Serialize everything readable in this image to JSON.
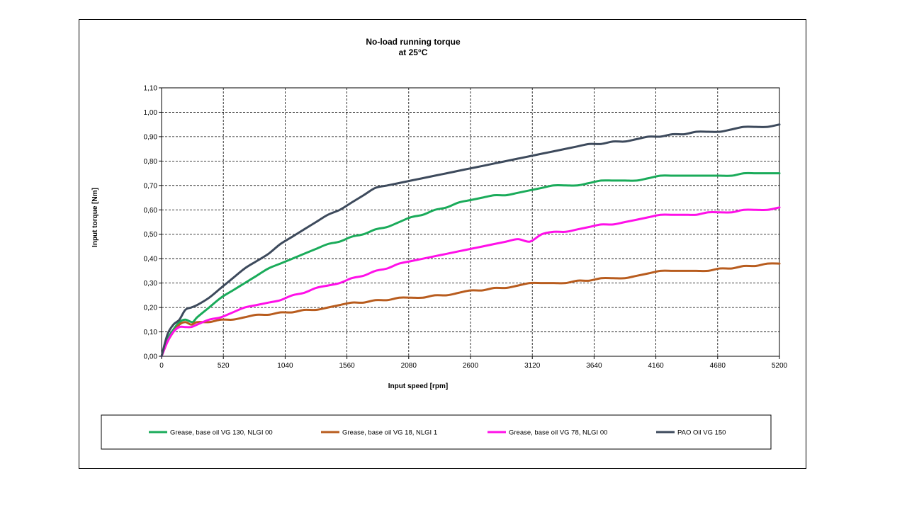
{
  "chart_data": {
    "type": "line",
    "title": "No-load running torque",
    "subtitle": "at 25°C",
    "xlabel": "Input speed [rpm]",
    "ylabel": "Input torque [Nm]",
    "xlim": [
      0,
      5200
    ],
    "ylim": [
      0,
      1.1
    ],
    "x_ticks": [
      "0",
      "520",
      "1040",
      "1560",
      "2080",
      "2600",
      "3120",
      "3640",
      "4160",
      "4680",
      "5200"
    ],
    "y_ticks": [
      "0,00",
      "0,10",
      "0,20",
      "0,30",
      "0,40",
      "0,50",
      "0,60",
      "0,70",
      "0,80",
      "0,90",
      "1,00",
      "1,10"
    ],
    "grid": true,
    "legend_position": "bottom",
    "series": [
      {
        "name": "Grease, base oil VG 130, NLGI 00",
        "color": "#1aab5a",
        "x": [
          0,
          50,
          100,
          150,
          200,
          260,
          300,
          400,
          500,
          600,
          700,
          800,
          900,
          1000,
          1100,
          1200,
          1300,
          1400,
          1500,
          1600,
          1700,
          1800,
          1900,
          2000,
          2100,
          2200,
          2300,
          2400,
          2500,
          2600,
          2700,
          2800,
          2900,
          3000,
          3100,
          3200,
          3300,
          3400,
          3500,
          3600,
          3700,
          3800,
          3900,
          4000,
          4100,
          4200,
          4300,
          4400,
          4500,
          4600,
          4700,
          4800,
          4900,
          5000,
          5100,
          5200
        ],
        "y": [
          0,
          0.07,
          0.11,
          0.14,
          0.15,
          0.14,
          0.16,
          0.2,
          0.24,
          0.27,
          0.3,
          0.33,
          0.36,
          0.38,
          0.4,
          0.42,
          0.44,
          0.46,
          0.47,
          0.49,
          0.5,
          0.52,
          0.53,
          0.55,
          0.57,
          0.58,
          0.6,
          0.61,
          0.63,
          0.64,
          0.65,
          0.66,
          0.66,
          0.67,
          0.68,
          0.69,
          0.7,
          0.7,
          0.7,
          0.71,
          0.72,
          0.72,
          0.72,
          0.72,
          0.73,
          0.74,
          0.74,
          0.74,
          0.74,
          0.74,
          0.74,
          0.74,
          0.75,
          0.75,
          0.75,
          0.75
        ]
      },
      {
        "name": "Grease, base oil VG 18, NLGI 1",
        "color": "#b85c1e",
        "x": [
          0,
          50,
          100,
          150,
          200,
          250,
          300,
          400,
          500,
          600,
          700,
          800,
          900,
          1000,
          1100,
          1200,
          1300,
          1400,
          1500,
          1600,
          1700,
          1800,
          1900,
          2000,
          2100,
          2200,
          2300,
          2400,
          2500,
          2600,
          2700,
          2800,
          2900,
          3000,
          3100,
          3200,
          3300,
          3400,
          3500,
          3600,
          3700,
          3800,
          3900,
          4000,
          4100,
          4200,
          4300,
          4400,
          4500,
          4600,
          4700,
          4800,
          4900,
          5000,
          5100,
          5200
        ],
        "y": [
          0,
          0.06,
          0.1,
          0.13,
          0.14,
          0.13,
          0.14,
          0.14,
          0.15,
          0.15,
          0.16,
          0.17,
          0.17,
          0.18,
          0.18,
          0.19,
          0.19,
          0.2,
          0.21,
          0.22,
          0.22,
          0.23,
          0.23,
          0.24,
          0.24,
          0.24,
          0.25,
          0.25,
          0.26,
          0.27,
          0.27,
          0.28,
          0.28,
          0.29,
          0.3,
          0.3,
          0.3,
          0.3,
          0.31,
          0.31,
          0.32,
          0.32,
          0.32,
          0.33,
          0.34,
          0.35,
          0.35,
          0.35,
          0.35,
          0.35,
          0.36,
          0.36,
          0.37,
          0.37,
          0.38,
          0.38
        ]
      },
      {
        "name": "Grease, base oil VG 78, NLGI 00",
        "color": "#ff10e8",
        "x": [
          0,
          50,
          100,
          150,
          200,
          250,
          300,
          400,
          500,
          600,
          700,
          800,
          900,
          1000,
          1100,
          1200,
          1300,
          1400,
          1500,
          1600,
          1700,
          1800,
          1900,
          2000,
          2100,
          2200,
          2300,
          2400,
          2500,
          2600,
          2700,
          2800,
          2900,
          3000,
          3100,
          3200,
          3300,
          3400,
          3500,
          3600,
          3700,
          3800,
          3900,
          4000,
          4100,
          4200,
          4300,
          4400,
          4500,
          4600,
          4700,
          4800,
          4900,
          5000,
          5100,
          5200
        ],
        "y": [
          0,
          0.06,
          0.1,
          0.12,
          0.12,
          0.12,
          0.13,
          0.15,
          0.16,
          0.18,
          0.2,
          0.21,
          0.22,
          0.23,
          0.25,
          0.26,
          0.28,
          0.29,
          0.3,
          0.32,
          0.33,
          0.35,
          0.36,
          0.38,
          0.39,
          0.4,
          0.41,
          0.42,
          0.43,
          0.44,
          0.45,
          0.46,
          0.47,
          0.48,
          0.47,
          0.5,
          0.51,
          0.51,
          0.52,
          0.53,
          0.54,
          0.54,
          0.55,
          0.56,
          0.57,
          0.58,
          0.58,
          0.58,
          0.58,
          0.59,
          0.59,
          0.59,
          0.6,
          0.6,
          0.6,
          0.61
        ]
      },
      {
        "name": "PAO Oil VG 150",
        "color": "#3d4a5c",
        "x": [
          0,
          50,
          100,
          150,
          200,
          250,
          300,
          400,
          500,
          600,
          700,
          800,
          900,
          1000,
          1100,
          1200,
          1300,
          1400,
          1500,
          1600,
          1700,
          1800,
          1900,
          2000,
          2100,
          2200,
          2300,
          2400,
          2500,
          2600,
          2700,
          2800,
          2900,
          3000,
          3100,
          3200,
          3300,
          3400,
          3500,
          3600,
          3700,
          3800,
          3900,
          4000,
          4100,
          4200,
          4300,
          4400,
          4500,
          4600,
          4700,
          4800,
          4900,
          5000,
          5100,
          5200
        ],
        "y": [
          0,
          0.09,
          0.13,
          0.15,
          0.19,
          0.2,
          0.21,
          0.24,
          0.28,
          0.32,
          0.36,
          0.39,
          0.42,
          0.46,
          0.49,
          0.52,
          0.55,
          0.58,
          0.6,
          0.63,
          0.66,
          0.69,
          0.7,
          0.71,
          0.72,
          0.73,
          0.74,
          0.75,
          0.76,
          0.77,
          0.78,
          0.79,
          0.8,
          0.81,
          0.82,
          0.83,
          0.84,
          0.85,
          0.86,
          0.87,
          0.87,
          0.88,
          0.88,
          0.89,
          0.9,
          0.9,
          0.91,
          0.91,
          0.92,
          0.92,
          0.92,
          0.93,
          0.94,
          0.94,
          0.94,
          0.95
        ]
      }
    ]
  }
}
